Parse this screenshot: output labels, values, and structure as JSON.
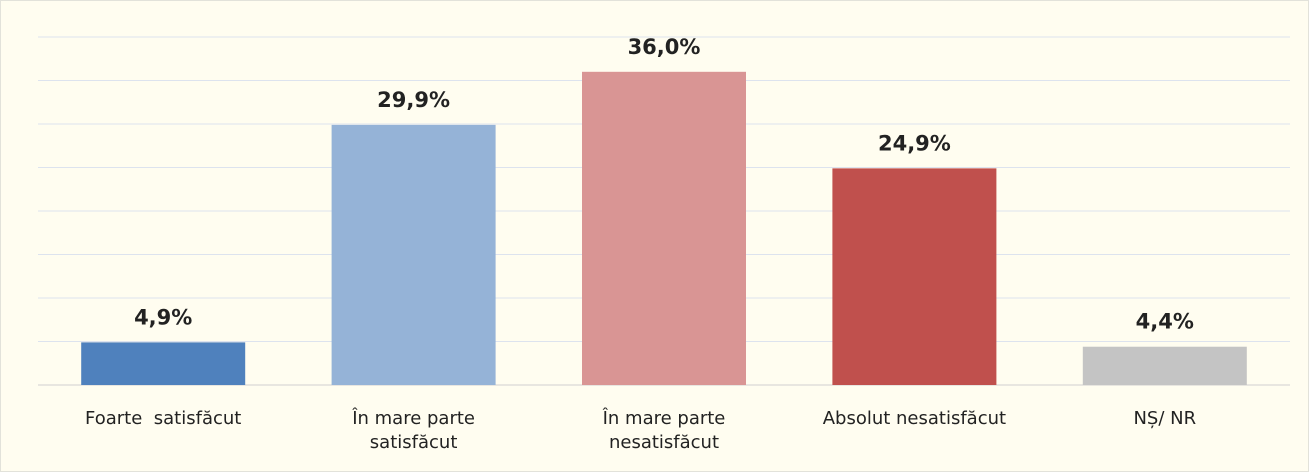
{
  "chart_data": {
    "type": "bar",
    "categories": [
      "Foarte  satisfăcut",
      "În mare parte\nsatisfăcut",
      "În mare parte\nnesatisfăcut",
      "Absolut nesatisfăcut",
      "NȘ/ NR"
    ],
    "values": [
      4.9,
      29.9,
      36.0,
      24.9,
      4.4
    ],
    "value_labels": [
      "4,9%",
      "29,9%",
      "36,0%",
      "24,9%",
      "4,4%"
    ],
    "colors": [
      "#4f81bd",
      "#95b3d7",
      "#d99594",
      "#c0504d",
      "#c4c4c4"
    ],
    "ylim": [
      0,
      40
    ],
    "yticks": [
      0,
      5,
      10,
      15,
      20,
      25,
      30,
      35,
      40
    ],
    "grid": true
  }
}
